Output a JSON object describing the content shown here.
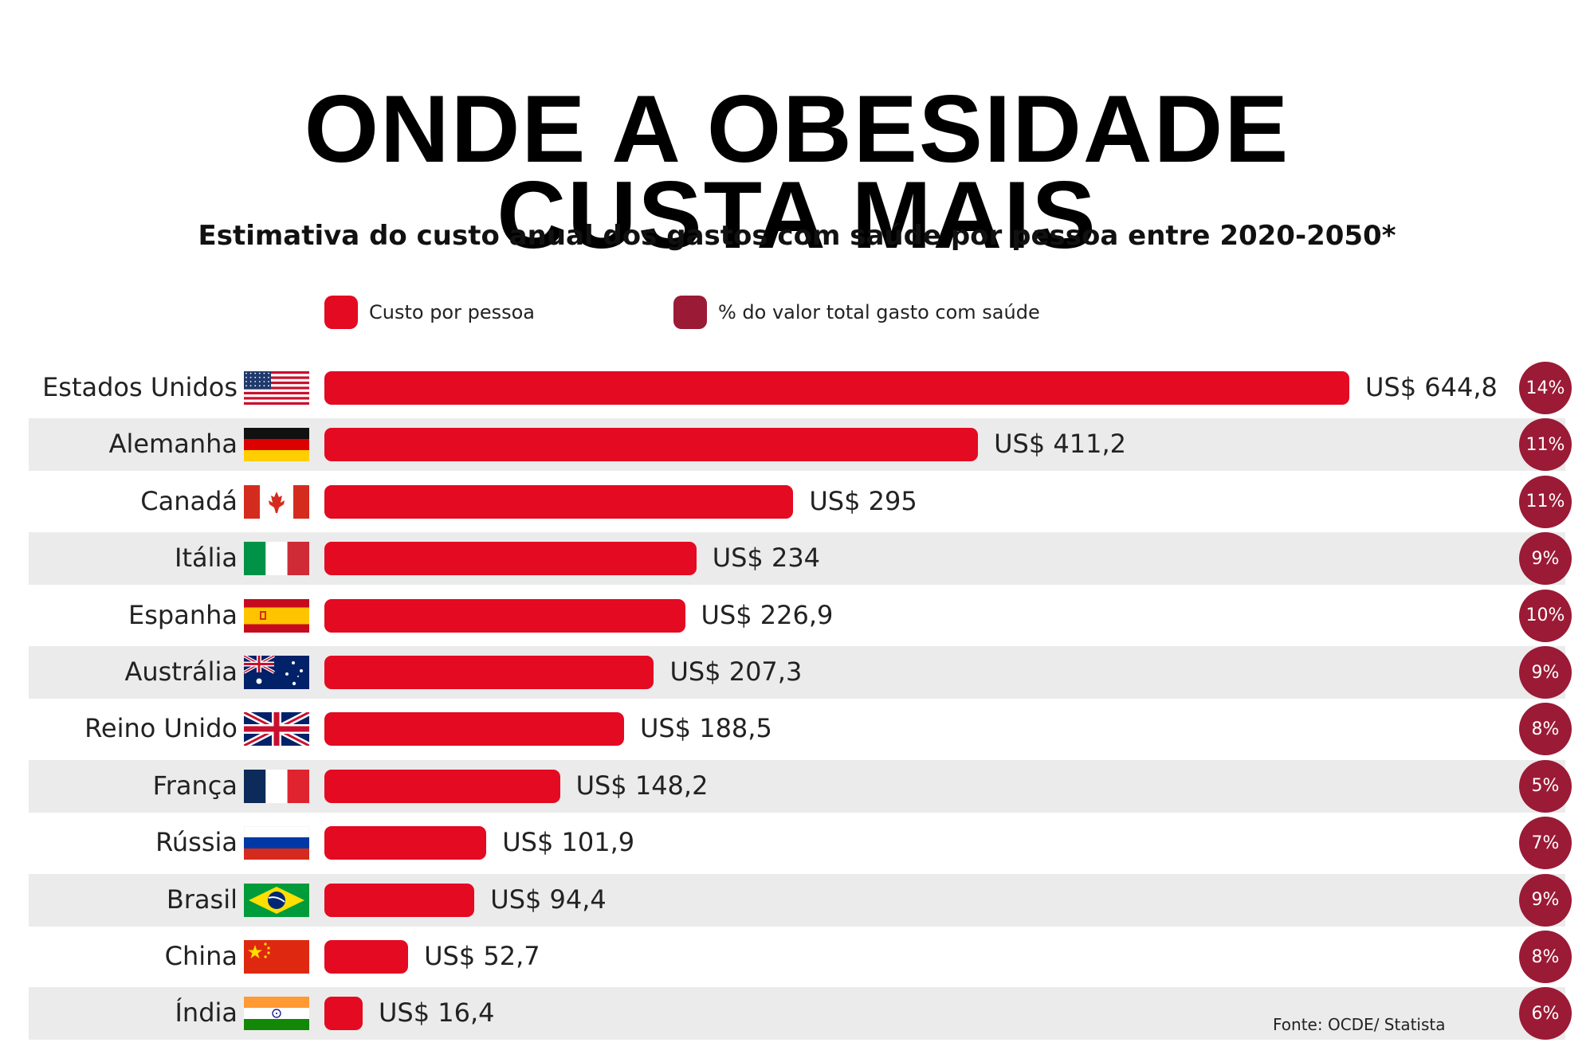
{
  "title_lines": [
    "ONDE A OBESIDADE",
    "CUSTA MAIS"
  ],
  "subtitle": "Estimativa do custo anual dos gastos com saúde por pessoa entre 2020-2050*",
  "legend": [
    {
      "label": "Custo por pessoa",
      "color": "#e30a22"
    },
    {
      "label": "% do valor total gasto com saúde",
      "color": "#9b1a35"
    }
  ],
  "source": "Fonte: OCDE/ Statista",
  "colors": {
    "bar": "#e30a22",
    "circle": "#9b1a35",
    "stripe": "#ebebeb"
  },
  "chart_data": {
    "type": "bar",
    "orientation": "horizontal",
    "categories": [
      "Estados Unidos",
      "Alemanha",
      "Canadá",
      "Itália",
      "Espanha",
      "Austrália",
      "Reino Unido",
      "França",
      "Rússia",
      "Brasil",
      "China",
      "Índia"
    ],
    "series": [
      {
        "name": "Custo por pessoa",
        "values": [
          644.8,
          411.2,
          295,
          234,
          226.9,
          207.3,
          188.5,
          148.2,
          101.9,
          94.4,
          52.7,
          16.4
        ]
      },
      {
        "name": "% do valor total gasto com saúde",
        "values": [
          14,
          11,
          11,
          9,
          10,
          9,
          8,
          5,
          7,
          9,
          8,
          6
        ]
      }
    ],
    "value_labels": [
      "US$ 644,8",
      "US$ 411,2",
      "US$ 295",
      "US$ 234",
      "US$ 226,9",
      "US$ 207,3",
      "US$ 188,5",
      "US$ 148,2",
      "US$ 101,9",
      "US$ 94,4",
      "US$ 52,7",
      "US$ 16,4"
    ],
    "pct_labels": [
      "14%",
      "11%",
      "11%",
      "9%",
      "10%",
      "9%",
      "8%",
      "5%",
      "7%",
      "9%",
      "8%",
      "6%"
    ],
    "flags": [
      "usa-flag-icon",
      "germany-flag-icon",
      "canada-flag-icon",
      "italy-flag-icon",
      "spain-flag-icon",
      "australia-flag-icon",
      "uk-flag-icon",
      "france-flag-icon",
      "russia-flag-icon",
      "brazil-flag-icon",
      "china-flag-icon",
      "india-flag-icon"
    ],
    "title": "ONDE A OBESIDADE CUSTA MAIS",
    "subtitle": "Estimativa do custo anual dos gastos com saúde por pessoa entre 2020-2050*"
  }
}
